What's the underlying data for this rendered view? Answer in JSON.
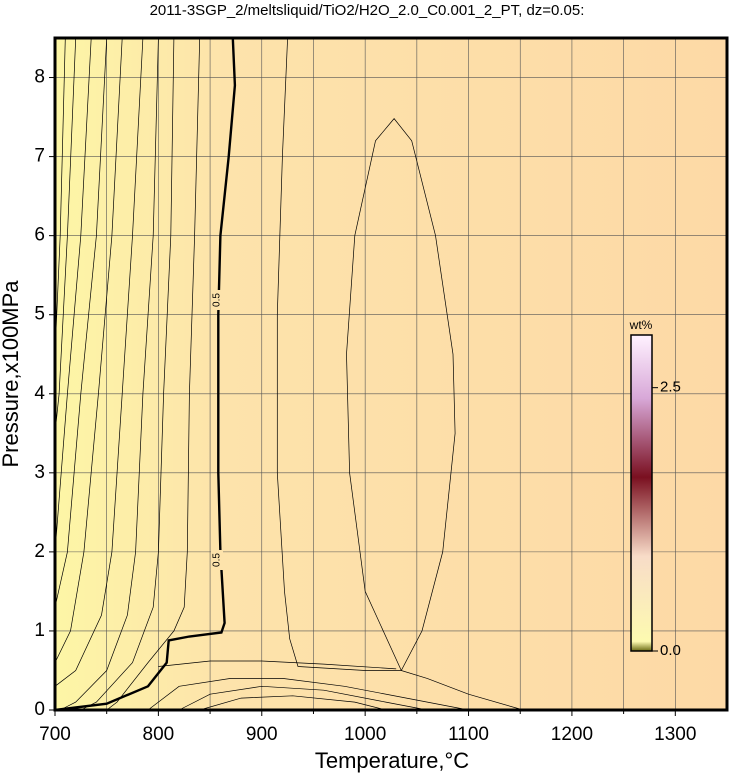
{
  "chart_data": {
    "type": "contour",
    "title": "2011-3SGP_2/meltsliquid/TiO2/H2O_2.0_C0.001_2_PT, dz=0.05:",
    "x_label": "Temperature,°C",
    "y_label": "Pressure,x100MPa",
    "xlim": [
      700,
      1350
    ],
    "ylim": [
      0,
      8.5
    ],
    "xticks": [
      700,
      800,
      900,
      1000,
      1100,
      1200,
      1300
    ],
    "x_minor_ticks": [
      750,
      850,
      950,
      1050,
      1150,
      1250
    ],
    "yticks": [
      0,
      1,
      2,
      3,
      4,
      5,
      6,
      7,
      8
    ],
    "grid": true,
    "colorbar": {
      "label": "wt%",
      "clim": [
        0,
        3.0
      ],
      "ticks": [
        {
          "value": 0,
          "label": "0.0"
        },
        2.5
      ]
    },
    "contours": [
      {
        "level": 0.5,
        "x": [
          700,
          750,
          790,
          808,
          810,
          830,
          861,
          864,
          860,
          858,
          858,
          858,
          860,
          868,
          874,
          872
        ],
        "y": [
          0,
          0.08,
          0.3,
          0.6,
          0.88,
          0.93,
          0.98,
          1.1,
          2,
          3,
          4,
          5,
          6,
          7,
          7.9,
          8.5
        ]
      },
      {
        "x": [
          1035,
          1000,
          985,
          982,
          990,
          1010,
          1028,
          1045,
          1068,
          1085,
          1087,
          1075,
          1055,
          1035
        ],
        "y": [
          0.5,
          1.5,
          3,
          4.5,
          6,
          7.2,
          7.48,
          7.2,
          6,
          4.5,
          3.5,
          2,
          1,
          0.5
        ]
      },
      {
        "x": [
          925,
          920,
          915,
          915,
          922,
          927,
          935,
          1000,
          1035,
          1060,
          1100,
          1153
        ],
        "y": [
          8.5,
          7,
          5,
          3,
          1.5,
          0.9,
          0.55,
          0.5,
          0.5,
          0.4,
          0.2,
          0
        ]
      },
      {
        "x": [
          710,
          705,
          700
        ],
        "y": [
          8.5,
          6,
          4.5
        ]
      },
      {
        "x": [
          720,
          712,
          704,
          700
        ],
        "y": [
          8.5,
          6,
          4,
          3.5
        ]
      },
      {
        "x": [
          735,
          725,
          712,
          700
        ],
        "y": [
          8.5,
          6,
          4,
          2
        ]
      },
      {
        "x": [
          750,
          740,
          725,
          712,
          700
        ],
        "y": [
          8.5,
          6,
          4,
          2,
          1.3
        ]
      },
      {
        "x": [
          765,
          755,
          742,
          728,
          715,
          700
        ],
        "y": [
          8.5,
          6,
          4,
          2,
          1,
          0.6
        ]
      },
      {
        "x": [
          785,
          775,
          765,
          755,
          745,
          720,
          700
        ],
        "y": [
          8.5,
          6,
          4,
          2,
          1.2,
          0.5,
          0.3
        ]
      },
      {
        "x": [
          800,
          795,
          785,
          778,
          770,
          750,
          720,
          705
        ],
        "y": [
          8.5,
          6,
          4,
          2,
          1.2,
          0.5,
          0.1,
          0
        ]
      },
      {
        "x": [
          815,
          812,
          805,
          800,
          795,
          775,
          740,
          725
        ],
        "y": [
          8.5,
          6,
          4,
          2,
          1.3,
          0.6,
          0.1,
          0
        ]
      },
      {
        "x": [
          840,
          835,
          830,
          828,
          825,
          815,
          790,
          760,
          750
        ],
        "y": [
          8.5,
          6,
          4,
          2,
          1.3,
          1.0,
          0.6,
          0.1,
          0
        ]
      },
      {
        "x": [
          800,
          850,
          900,
          960,
          1030
        ],
        "y": [
          0.55,
          0.62,
          0.62,
          0.58,
          0.52
        ]
      },
      {
        "x": [
          790,
          820,
          870,
          920,
          980,
          1040,
          1100
        ],
        "y": [
          0,
          0.3,
          0.4,
          0.4,
          0.3,
          0.15,
          0
        ]
      },
      {
        "x": [
          820,
          850,
          900,
          960,
          1020,
          1060
        ],
        "y": [
          0,
          0.2,
          0.3,
          0.25,
          0.1,
          0
        ]
      },
      {
        "x": [
          840,
          880,
          930,
          990,
          1020
        ],
        "y": [
          0,
          0.15,
          0.18,
          0.1,
          0
        ]
      }
    ]
  }
}
